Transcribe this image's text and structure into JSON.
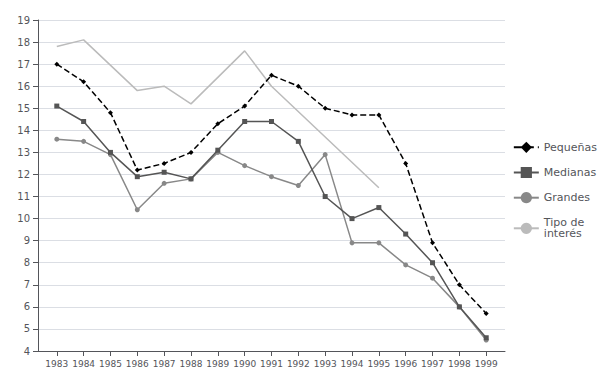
{
  "chart_data": {
    "type": "line",
    "xlim": [
      1982.3,
      1999.7
    ],
    "xticks": [
      1983,
      1984,
      1985,
      1986,
      1987,
      1988,
      1989,
      1990,
      1991,
      1992,
      1993,
      1994,
      1995,
      1996,
      1997,
      1998,
      1999
    ],
    "ylim": [
      4,
      19
    ],
    "yticks": [
      4,
      5,
      6,
      7,
      8,
      9,
      10,
      11,
      12,
      13,
      14,
      15,
      16,
      17,
      18,
      19
    ],
    "grid": true,
    "legend": "right",
    "series": [
      {
        "name": "Pequeñas",
        "color": "#000000",
        "marker": "diamond",
        "line_style": "dashed",
        "x": [
          1983,
          1984,
          1985,
          1986,
          1987,
          1988,
          1989,
          1990,
          1991,
          1992,
          1993,
          1994,
          1995,
          1996,
          1997,
          1998,
          1999
        ],
        "values": [
          17.0,
          16.2,
          14.8,
          12.2,
          12.5,
          13.0,
          14.3,
          15.1,
          16.5,
          16.0,
          15.0,
          14.7,
          14.7,
          12.5,
          8.9,
          7.0,
          5.7
        ]
      },
      {
        "name": "Medianas",
        "color": "#555555",
        "marker": "square",
        "line_style": "solid",
        "x": [
          1983,
          1984,
          1985,
          1986,
          1987,
          1988,
          1989,
          1990,
          1991,
          1992,
          1993,
          1994,
          1995,
          1996,
          1997,
          1998,
          1999
        ],
        "values": [
          15.1,
          14.4,
          13.0,
          11.9,
          12.1,
          11.8,
          13.1,
          14.4,
          14.4,
          13.5,
          11.0,
          10.0,
          10.5,
          9.3,
          8.0,
          6.0,
          4.6
        ]
      },
      {
        "name": "Grandes",
        "color": "#888888",
        "marker": "circle",
        "line_style": "solid",
        "x": [
          1983,
          1984,
          1985,
          1986,
          1987,
          1988,
          1989,
          1990,
          1991,
          1992,
          1993,
          1994,
          1995,
          1996,
          1997,
          1998,
          1999
        ],
        "values": [
          13.6,
          13.5,
          12.9,
          10.4,
          11.6,
          11.8,
          13.0,
          12.4,
          11.9,
          11.5,
          12.9,
          8.9,
          8.9,
          7.9,
          7.3,
          6.0,
          4.5
        ]
      },
      {
        "name": "Tipo de\ninterés",
        "color": "#bbbbbb",
        "marker": "none",
        "line_style": "solid",
        "x": [
          1983,
          1984,
          1986,
          1987,
          1988,
          1990,
          1991,
          1995
        ],
        "values": [
          17.8,
          18.1,
          15.8,
          16.0,
          15.2,
          17.6,
          16.0,
          11.4
        ]
      }
    ]
  }
}
